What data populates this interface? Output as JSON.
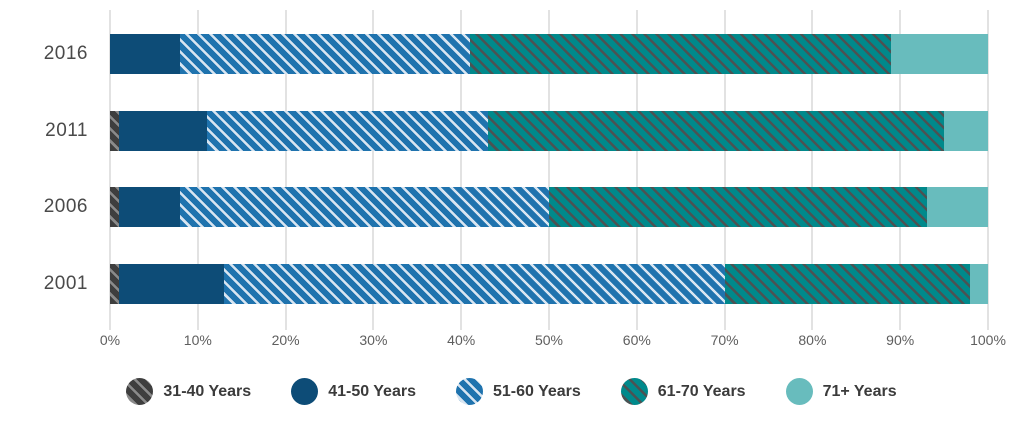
{
  "chart_data": {
    "type": "bar",
    "orientation": "horizontal",
    "stacked": true,
    "title": "",
    "xlabel": "",
    "ylabel": "",
    "xlim": [
      0,
      100
    ],
    "grid": true,
    "legend_position": "bottom",
    "categories": [
      "2016",
      "2011",
      "2006",
      "2001"
    ],
    "x_ticks": [
      "0%",
      "10%",
      "20%",
      "30%",
      "40%",
      "50%",
      "60%",
      "70%",
      "80%",
      "90%",
      "100%"
    ],
    "series": [
      {
        "name": "31-40 Years",
        "values": [
          0,
          1,
          1,
          1
        ],
        "color": "#3e3e3e",
        "pattern": "diagonal-stripe",
        "stripe_color": "#8a8a8a"
      },
      {
        "name": "41-50 Years",
        "values": [
          8,
          10,
          7,
          12
        ],
        "color": "#0d4c77",
        "pattern": "solid",
        "stripe_color": null
      },
      {
        "name": "51-60 Years",
        "values": [
          33,
          32,
          42,
          57
        ],
        "color": "#1f73ae",
        "pattern": "diagonal-stripe",
        "stripe_color": "#d8e5f1"
      },
      {
        "name": "61-70 Years",
        "values": [
          48,
          52,
          43,
          28
        ],
        "color": "#00898b",
        "pattern": "diagonal-stripe",
        "stripe_color": "#4c5253"
      },
      {
        "name": "71+ Years",
        "values": [
          11,
          5,
          7,
          2
        ],
        "color": "#68bcbd",
        "pattern": "solid",
        "stripe_color": null
      }
    ],
    "grid_color": "#e2e2e2"
  }
}
